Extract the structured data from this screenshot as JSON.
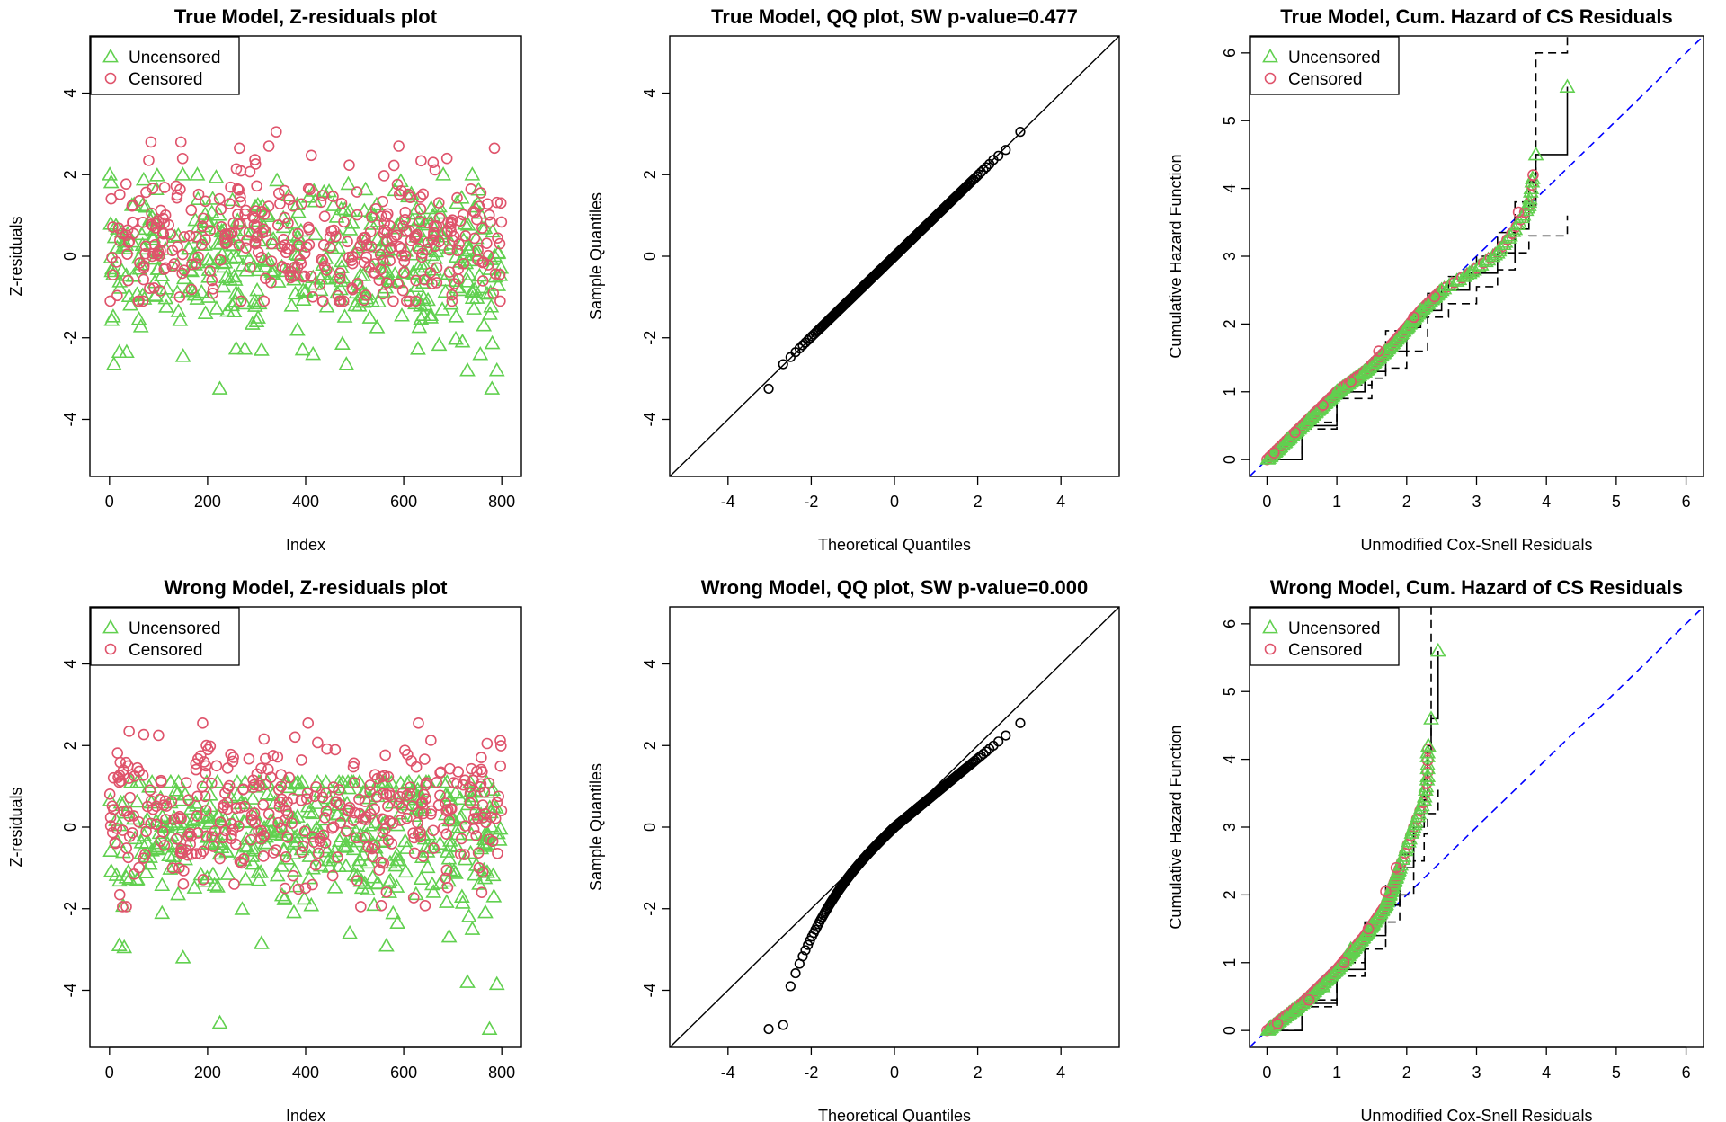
{
  "colors": {
    "uncensored": "#61D04F",
    "censored": "#DF536B",
    "points": "#000000",
    "reference_dashed": "#0000FF",
    "envelope": "#000000"
  },
  "chart_data": [
    {
      "type": "scatter",
      "title": "True Model, Z-residuals  plot",
      "xlabel": "Index",
      "ylabel": "Z-residuals",
      "xlim": [
        -40,
        840
      ],
      "ylim": [
        -5.4,
        5.4
      ],
      "xticks": [
        0,
        200,
        400,
        600,
        800
      ],
      "yticks": [
        -4,
        -2,
        0,
        2,
        4
      ],
      "legend": {
        "position": "top-left",
        "entries": [
          "Uncensored",
          "Censored"
        ]
      },
      "n_points": 800,
      "series": [
        {
          "name": "Uncensored",
          "marker": "triangle",
          "y_min": -3.25,
          "y_max": 2.2,
          "notable_points": [
            [
              20,
              -2.35
            ],
            [
              35,
              -2.35
            ],
            [
              225,
              -3.25
            ],
            [
              300,
              -1.6
            ],
            [
              310,
              -2.3
            ],
            [
              730,
              -2.8
            ],
            [
              790,
              -2.8
            ],
            [
              780,
              -3.25
            ],
            [
              475,
              -2.15
            ],
            [
              150,
              -2.45
            ]
          ]
        },
        {
          "name": "Censored",
          "marker": "circle",
          "y_min": -1.1,
          "y_max": 3.05,
          "notable_points": [
            [
              80,
              2.35
            ],
            [
              265,
              2.65
            ],
            [
              325,
              2.7
            ],
            [
              340,
              3.05
            ],
            [
              590,
              2.7
            ],
            [
              785,
              2.65
            ],
            [
              660,
              2.3
            ]
          ]
        }
      ]
    },
    {
      "type": "scatter",
      "title": "True Model, QQ plot, SW p-value=0.477",
      "xlabel": "Theoretical Quantiles",
      "ylabel": "Sample Quantiles",
      "xlim": [
        -5.4,
        5.4
      ],
      "ylim": [
        -5.4,
        5.4
      ],
      "xticks": [
        -4,
        -2,
        0,
        2,
        4
      ],
      "yticks": [
        -4,
        -2,
        0,
        2,
        4
      ],
      "reference_line": "y = x",
      "n_points": 800,
      "x_range": [
        -3.25,
        3.25
      ],
      "y_range": [
        -3.25,
        3.05
      ]
    },
    {
      "type": "line",
      "title": "True Model, Cum. Hazard of CS Residuals",
      "xlabel": "Unmodified Cox-Snell Residuals",
      "ylabel": "Cumulative Hazard Function",
      "xlim": [
        -0.25,
        6.25
      ],
      "ylim": [
        -0.25,
        6.25
      ],
      "xticks": [
        0,
        1,
        2,
        3,
        4,
        5,
        6
      ],
      "yticks": [
        0,
        1,
        2,
        3,
        4,
        5,
        6
      ],
      "legend": {
        "position": "top-left",
        "entries": [
          "Uncensored",
          "Censored"
        ]
      },
      "reference_line": "y = x (dashed)",
      "series": [
        {
          "name": "Uncensored",
          "marker": "triangle",
          "points": [
            [
              0.05,
              0.05
            ],
            [
              0.3,
              0.3
            ],
            [
              0.6,
              0.6
            ],
            [
              1.0,
              1.0
            ],
            [
              1.4,
              1.3
            ],
            [
              1.7,
              1.6
            ],
            [
              2.0,
              1.95
            ],
            [
              2.2,
              2.2
            ],
            [
              2.5,
              2.5
            ],
            [
              2.9,
              2.75
            ],
            [
              3.3,
              3.05
            ],
            [
              3.55,
              3.4
            ],
            [
              3.75,
              3.75
            ],
            [
              3.85,
              4.5
            ],
            [
              4.3,
              5.5
            ]
          ]
        },
        {
          "name": "Censored",
          "marker": "circle",
          "points": [
            [
              0.1,
              0.1
            ],
            [
              0.4,
              0.4
            ],
            [
              0.8,
              0.8
            ],
            [
              1.2,
              1.15
            ],
            [
              1.6,
              1.6
            ],
            [
              2.1,
              2.1
            ],
            [
              2.4,
              2.4
            ],
            [
              3.6,
              3.65
            ]
          ]
        }
      ],
      "step_curve": [
        [
          0,
          0
        ],
        [
          0.5,
          0.5
        ],
        [
          1.0,
          1.0
        ],
        [
          1.4,
          1.3
        ],
        [
          1.7,
          1.6
        ],
        [
          2.0,
          1.95
        ],
        [
          2.2,
          2.2
        ],
        [
          2.5,
          2.5
        ],
        [
          2.9,
          2.75
        ],
        [
          3.3,
          3.05
        ],
        [
          3.55,
          3.4
        ],
        [
          3.75,
          3.75
        ],
        [
          3.85,
          4.5
        ],
        [
          4.3,
          4.5
        ],
        [
          4.3,
          5.5
        ]
      ],
      "envelope_upper": [
        [
          0,
          0
        ],
        [
          0.5,
          0.55
        ],
        [
          1.0,
          1.1
        ],
        [
          1.5,
          1.5
        ],
        [
          1.7,
          1.9
        ],
        [
          2.1,
          2.1
        ],
        [
          2.3,
          2.45
        ],
        [
          2.6,
          2.7
        ],
        [
          3.0,
          3.0
        ],
        [
          3.3,
          3.35
        ],
        [
          3.55,
          3.8
        ],
        [
          3.75,
          4.1
        ],
        [
          3.85,
          6.0
        ],
        [
          4.3,
          6.0
        ],
        [
          4.3,
          6.25
        ]
      ],
      "envelope_lower": [
        [
          0,
          0
        ],
        [
          0.5,
          0.45
        ],
        [
          1.0,
          0.9
        ],
        [
          1.5,
          1.2
        ],
        [
          1.7,
          1.35
        ],
        [
          2.0,
          1.6
        ],
        [
          2.3,
          2.1
        ],
        [
          2.6,
          2.3
        ],
        [
          3.0,
          2.55
        ],
        [
          3.3,
          2.8
        ],
        [
          3.55,
          3.05
        ],
        [
          3.75,
          3.3
        ],
        [
          4.3,
          3.3
        ],
        [
          4.3,
          3.6
        ]
      ]
    },
    {
      "type": "scatter",
      "title": "Wrong Model, Z-residuals plot",
      "xlabel": "Index",
      "ylabel": "Z-residuals",
      "xlim": [
        -40,
        840
      ],
      "ylim": [
        -5.4,
        5.4
      ],
      "xticks": [
        0,
        200,
        400,
        600,
        800
      ],
      "yticks": [
        -4,
        -2,
        0,
        2,
        4
      ],
      "legend": {
        "position": "top-left",
        "entries": [
          "Uncensored",
          "Censored"
        ]
      },
      "n_points": 800,
      "series": [
        {
          "name": "Uncensored",
          "marker": "triangle",
          "y_min": -4.95,
          "y_max": 1.3,
          "notable_points": [
            [
              20,
              -2.9
            ],
            [
              30,
              -2.95
            ],
            [
              150,
              -3.2
            ],
            [
              225,
              -4.8
            ],
            [
              730,
              -3.8
            ],
            [
              790,
              -3.85
            ],
            [
              775,
              -4.95
            ],
            [
              740,
              -2.5
            ],
            [
              490,
              -2.6
            ],
            [
              310,
              -2.85
            ]
          ]
        },
        {
          "name": "Censored",
          "marker": "circle",
          "y_min": -1.95,
          "y_max": 2.55,
          "notable_points": [
            [
              40,
              2.35
            ],
            [
              100,
              2.25
            ],
            [
              190,
              2.55
            ],
            [
              405,
              2.55
            ],
            [
              630,
              2.55
            ],
            [
              770,
              2.05
            ],
            [
              20,
              1.1
            ]
          ]
        }
      ]
    },
    {
      "type": "scatter",
      "title": "Wrong Model, QQ plot, SW p-value=0.000",
      "xlabel": "Theoretical Quantiles",
      "ylabel": "Sample Quantiles",
      "xlim": [
        -5.4,
        5.4
      ],
      "ylim": [
        -5.4,
        5.4
      ],
      "xticks": [
        -4,
        -2,
        0,
        2,
        4
      ],
      "yticks": [
        -4,
        -2,
        0,
        2,
        4
      ],
      "reference_line": "y = x",
      "n_points": 800,
      "x_range": [
        -3.25,
        3.25
      ],
      "y_range": [
        -4.95,
        2.55
      ]
    },
    {
      "type": "line",
      "title": "Wrong Model, Cum. Hazard of CS Residuals",
      "xlabel": "Unmodified Cox-Snell Residuals",
      "ylabel": "Cumulative Hazard Function",
      "xlim": [
        -0.25,
        6.25
      ],
      "ylim": [
        -0.25,
        6.25
      ],
      "xticks": [
        0,
        1,
        2,
        3,
        4,
        5,
        6
      ],
      "yticks": [
        0,
        1,
        2,
        3,
        4,
        5,
        6
      ],
      "legend": {
        "position": "top-left",
        "entries": [
          "Uncensored",
          "Censored"
        ]
      },
      "reference_line": "y = x (dashed)",
      "series": [
        {
          "name": "Uncensored",
          "marker": "triangle",
          "points": [
            [
              0.05,
              0.05
            ],
            [
              0.4,
              0.3
            ],
            [
              0.8,
              0.65
            ],
            [
              1.2,
              1.2
            ],
            [
              1.5,
              1.55
            ],
            [
              1.75,
              2.0
            ],
            [
              1.9,
              2.4
            ],
            [
              2.1,
              3.0
            ],
            [
              2.25,
              3.4
            ],
            [
              2.3,
              3.75
            ],
            [
              2.3,
              4.1
            ],
            [
              2.35,
              4.6
            ],
            [
              2.45,
              5.6
            ]
          ]
        },
        {
          "name": "Censored",
          "marker": "circle",
          "points": [
            [
              0.15,
              0.1
            ],
            [
              0.6,
              0.45
            ],
            [
              1.1,
              1.0
            ],
            [
              1.45,
              1.5
            ],
            [
              1.7,
              2.05
            ],
            [
              1.85,
              2.4
            ]
          ]
        }
      ],
      "step_curve": [
        [
          0,
          0
        ],
        [
          0.5,
          0.4
        ],
        [
          1.0,
          0.9
        ],
        [
          1.4,
          1.4
        ],
        [
          1.7,
          1.85
        ],
        [
          1.9,
          2.4
        ],
        [
          2.1,
          3.0
        ],
        [
          2.25,
          3.4
        ],
        [
          2.3,
          3.75
        ],
        [
          2.3,
          4.1
        ],
        [
          2.35,
          4.6
        ],
        [
          2.45,
          4.6
        ],
        [
          2.45,
          5.6
        ]
      ],
      "envelope_upper": [
        [
          0,
          0
        ],
        [
          0.5,
          0.45
        ],
        [
          1.0,
          1.0
        ],
        [
          1.4,
          1.6
        ],
        [
          1.7,
          2.15
        ],
        [
          1.9,
          2.6
        ],
        [
          2.1,
          3.2
        ],
        [
          2.25,
          3.7
        ],
        [
          2.3,
          4.2
        ],
        [
          2.35,
          6.3
        ]
      ],
      "envelope_lower": [
        [
          0,
          0
        ],
        [
          0.5,
          0.35
        ],
        [
          1.0,
          0.8
        ],
        [
          1.4,
          1.2
        ],
        [
          1.7,
          1.6
        ],
        [
          1.9,
          2.0
        ],
        [
          2.1,
          2.5
        ],
        [
          2.25,
          2.9
        ],
        [
          2.3,
          3.2
        ],
        [
          2.45,
          3.3
        ],
        [
          2.45,
          3.55
        ]
      ]
    }
  ]
}
